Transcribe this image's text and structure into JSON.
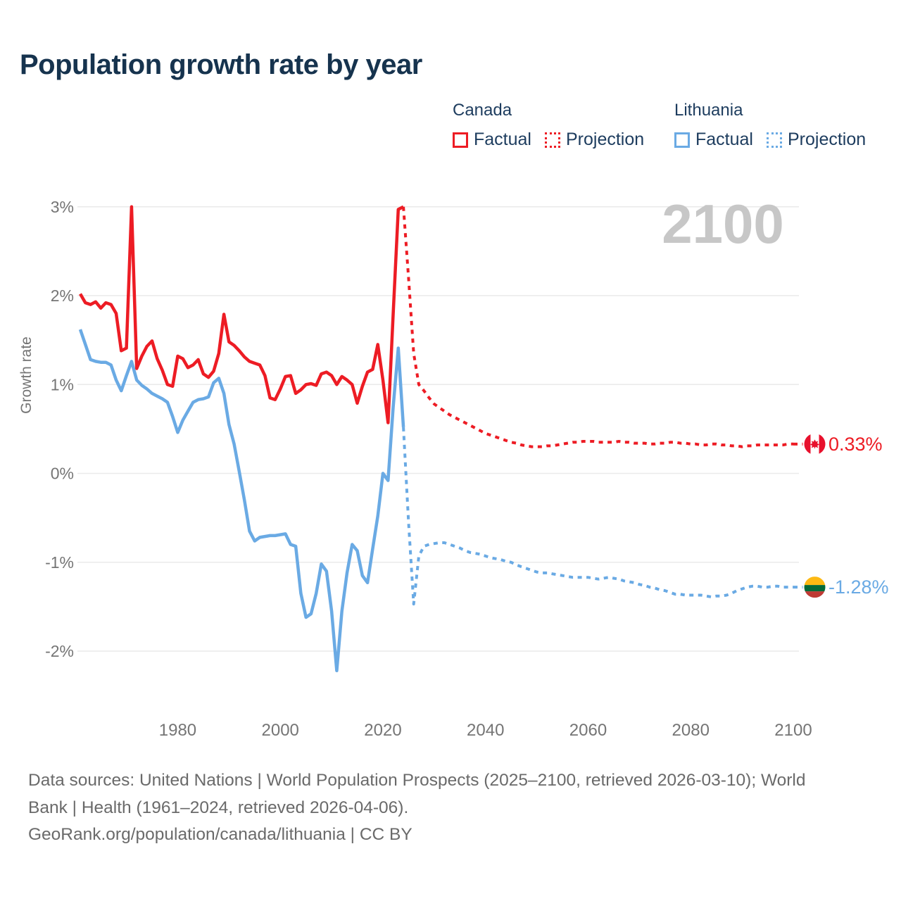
{
  "title": "Population growth rate by year",
  "watermark": "2100",
  "legend": {
    "groups": [
      {
        "country": "Canada",
        "color": "#ed1c24",
        "items": [
          {
            "label": "Factual",
            "style": "solid"
          },
          {
            "label": "Projection",
            "style": "dotted"
          }
        ]
      },
      {
        "country": "Lithuania",
        "color": "#6aaae4",
        "items": [
          {
            "label": "Factual",
            "style": "solid"
          },
          {
            "label": "Projection",
            "style": "dotted"
          }
        ]
      }
    ]
  },
  "footer": {
    "lines": [
      "Data sources: United Nations | World Population Prospects (2025–2100, retrieved 2026-03-10); World",
      "Bank | Health (1961–2024, retrieved 2026-04-06).",
      "GeoRank.org/population/canada/lithuania | CC BY"
    ]
  },
  "colors": {
    "canada": "#ed1c24",
    "lithuania": "#6aaae4",
    "title_navy": "#16334e",
    "legend_navy": "#1d3c5e",
    "axis_gray": "#757575",
    "gridline": "#eaeaea",
    "watermark_gray": "#c7c7c7",
    "footer_gray": "#6a6a6a",
    "flag_lithuania_yellow": "#fdb913",
    "flag_lithuania_green": "#046a38",
    "flag_lithuania_red": "#be3a34",
    "flag_canada_red": "#e8112d"
  },
  "chart_data": {
    "type": "line",
    "title": "Population growth rate by year",
    "xlabel": "",
    "ylabel": "Growth rate",
    "xlim": [
      1961,
      2100
    ],
    "ylim": [
      -2.5,
      3
    ],
    "grid": true,
    "legend_position": "top-right",
    "x_ticks": [
      "1980",
      "2000",
      "2020",
      "2040",
      "2060",
      "2080",
      "2100"
    ],
    "x_tick_years": [
      1980,
      2000,
      2020,
      2040,
      2060,
      2080,
      2100
    ],
    "y_ticks": [
      {
        "value": 3,
        "label": "3%"
      },
      {
        "value": 2,
        "label": "2%"
      },
      {
        "value": 1,
        "label": "1%"
      },
      {
        "value": 0,
        "label": "0%"
      },
      {
        "value": -1,
        "label": "-1%"
      },
      {
        "value": -2,
        "label": "-2%"
      }
    ],
    "series": [
      {
        "id": "canada-factual",
        "name": "Canada Factual",
        "country": "Canada",
        "kind": "Factual",
        "color": "#ed1c24",
        "style": "solid",
        "start_year": 1961,
        "values": [
          2.02,
          1.92,
          1.9,
          1.93,
          1.86,
          1.92,
          1.9,
          1.8,
          1.38,
          1.41,
          3.0,
          1.18,
          1.32,
          1.43,
          1.49,
          1.29,
          1.16,
          1.0,
          0.98,
          1.32,
          1.29,
          1.19,
          1.22,
          1.28,
          1.12,
          1.08,
          1.15,
          1.35,
          1.79,
          1.48,
          1.44,
          1.38,
          1.31,
          1.26,
          1.24,
          1.22,
          1.1,
          0.85,
          0.83,
          0.95,
          1.09,
          1.1,
          0.9,
          0.94,
          1.0,
          1.01,
          0.99,
          1.12,
          1.14,
          1.1,
          1.0,
          1.09,
          1.05,
          1.0,
          0.79,
          0.98,
          1.14,
          1.17,
          1.45,
          1.05,
          0.57,
          1.8,
          2.97,
          3.0
        ]
      },
      {
        "id": "canada-projection",
        "name": "Canada Projection",
        "country": "Canada",
        "kind": "Projection",
        "color": "#ed1c24",
        "style": "dotted",
        "start_year": 2024,
        "values": [
          3.0,
          2.2,
          1.35,
          1.0,
          0.93,
          0.85,
          0.78,
          0.74,
          0.7,
          0.66,
          0.63,
          0.6,
          0.57,
          0.54,
          0.51,
          0.48,
          0.45,
          0.43,
          0.41,
          0.39,
          0.37,
          0.35,
          0.34,
          0.32,
          0.31,
          0.3,
          0.3,
          0.3,
          0.31,
          0.31,
          0.32,
          0.33,
          0.34,
          0.35,
          0.35,
          0.36,
          0.36,
          0.36,
          0.35,
          0.35,
          0.35,
          0.35,
          0.36,
          0.35,
          0.35,
          0.34,
          0.34,
          0.34,
          0.33,
          0.33,
          0.34,
          0.34,
          0.35,
          0.35,
          0.34,
          0.34,
          0.33,
          0.33,
          0.32,
          0.32,
          0.33,
          0.33,
          0.32,
          0.32,
          0.31,
          0.31,
          0.3,
          0.31,
          0.31,
          0.32,
          0.32,
          0.32,
          0.32,
          0.32,
          0.32,
          0.33,
          0.33
        ]
      },
      {
        "id": "lithuania-factual",
        "name": "Lithuania Factual",
        "country": "Lithuania",
        "kind": "Factual",
        "color": "#6aaae4",
        "style": "solid",
        "start_year": 1961,
        "values": [
          1.62,
          1.45,
          1.28,
          1.26,
          1.25,
          1.25,
          1.22,
          1.05,
          0.93,
          1.1,
          1.26,
          1.05,
          0.99,
          0.95,
          0.9,
          0.87,
          0.84,
          0.8,
          0.64,
          0.46,
          0.6,
          0.7,
          0.8,
          0.83,
          0.84,
          0.86,
          1.02,
          1.07,
          0.9,
          0.55,
          0.33,
          0.02,
          -0.3,
          -0.65,
          -0.76,
          -0.72,
          -0.71,
          -0.7,
          -0.7,
          -0.69,
          -0.68,
          -0.8,
          -0.82,
          -1.35,
          -1.62,
          -1.58,
          -1.35,
          -1.02,
          -1.1,
          -1.55,
          -2.22,
          -1.55,
          -1.12,
          -0.8,
          -0.87,
          -1.15,
          -1.23,
          -0.85,
          -0.48,
          0.0,
          -0.08,
          0.75,
          1.41,
          0.52
        ]
      },
      {
        "id": "lithuania-projection",
        "name": "Lithuania Projection",
        "country": "Lithuania",
        "kind": "Projection",
        "color": "#6aaae4",
        "style": "dotted",
        "start_year": 2024,
        "values": [
          0.52,
          -0.55,
          -1.47,
          -0.93,
          -0.82,
          -0.8,
          -0.79,
          -0.78,
          -0.78,
          -0.8,
          -0.82,
          -0.84,
          -0.87,
          -0.89,
          -0.9,
          -0.91,
          -0.93,
          -0.95,
          -0.96,
          -0.97,
          -0.99,
          -1.0,
          -1.03,
          -1.05,
          -1.07,
          -1.09,
          -1.11,
          -1.12,
          -1.12,
          -1.13,
          -1.14,
          -1.15,
          -1.16,
          -1.17,
          -1.17,
          -1.17,
          -1.17,
          -1.18,
          -1.19,
          -1.18,
          -1.17,
          -1.18,
          -1.19,
          -1.21,
          -1.22,
          -1.23,
          -1.25,
          -1.26,
          -1.28,
          -1.29,
          -1.31,
          -1.32,
          -1.34,
          -1.36,
          -1.36,
          -1.37,
          -1.37,
          -1.37,
          -1.37,
          -1.38,
          -1.39,
          -1.38,
          -1.38,
          -1.37,
          -1.35,
          -1.32,
          -1.3,
          -1.28,
          -1.27,
          -1.27,
          -1.28,
          -1.28,
          -1.27,
          -1.27,
          -1.28,
          -1.28,
          -1.28
        ]
      }
    ],
    "end_markers": [
      {
        "id": "canada",
        "flag": "canada",
        "label": "0.33%",
        "value": 0.33,
        "color": "#ed1c24"
      },
      {
        "id": "lithuania",
        "flag": "lithuania",
        "label": "-1.28%",
        "value": -1.28,
        "color": "#6aaae4"
      }
    ]
  }
}
